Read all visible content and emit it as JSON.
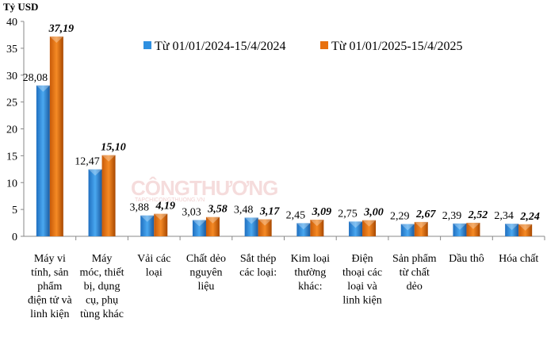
{
  "chart_data": {
    "type": "bar",
    "ylabel": "Tỷ USD",
    "ylim": [
      0,
      40
    ],
    "yticks": [
      0,
      5,
      10,
      15,
      20,
      25,
      30,
      35,
      40
    ],
    "grid": false,
    "legend_position": "top-right",
    "categories": [
      [
        "Máy vi",
        "tính, sản",
        "phẩm",
        "điện tử và",
        "linh kiện"
      ],
      [
        "Máy",
        "móc, thiết",
        "bị, dụng",
        "cụ, phụ",
        "tùng khác"
      ],
      [
        "Vải các",
        "loại"
      ],
      [
        "Chất dẻo",
        "nguyên",
        "liệu"
      ],
      [
        "Sắt thép",
        "các loại:"
      ],
      [
        "Kim loại",
        "thường",
        "khác:"
      ],
      [
        "Điện",
        "thoại các",
        "loại và",
        "linh kiện"
      ],
      [
        "Sản phẩm",
        "từ chất",
        "dẻo"
      ],
      [
        "Dầu thô"
      ],
      [
        "Hóa chất"
      ]
    ],
    "series": [
      {
        "name": "Từ 01/01/2024-15/4/2024",
        "color": "#2e8fe0",
        "values": [
          28.08,
          12.47,
          3.88,
          3.03,
          3.48,
          2.45,
          2.75,
          2.29,
          2.39,
          2.34
        ],
        "labels": [
          "28,08",
          "12,47",
          "3,88",
          "3,03",
          "3,48",
          "2,45",
          "2,75",
          "2,29",
          "2,39",
          "2,34"
        ]
      },
      {
        "name": "Từ 01/01/2025-15/4/2025",
        "color": "#e8700e",
        "values": [
          37.19,
          15.1,
          4.19,
          3.58,
          3.17,
          3.09,
          3.0,
          2.67,
          2.52,
          2.24
        ],
        "labels": [
          "37,19",
          "15,10",
          "4,19",
          "3,58",
          "3,17",
          "3,09",
          "3,00",
          "2,67",
          "2,52",
          "2,24"
        ]
      }
    ]
  },
  "watermark": {
    "text": "CÔNGTHƯƠNG",
    "sub": "TAPCHICONGTHUONG.VN"
  }
}
